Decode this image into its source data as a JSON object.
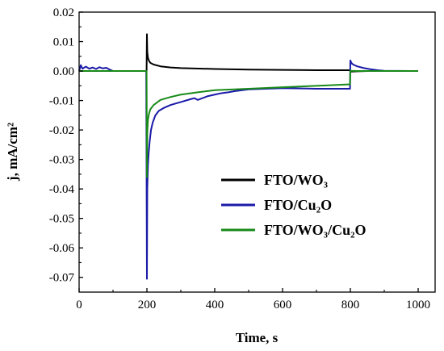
{
  "chart_data": {
    "type": "line",
    "xlabel": "Time, s",
    "ylabel": "j, mA/cm²",
    "xlim": [
      0,
      1050
    ],
    "ylim": [
      -0.075,
      0.02
    ],
    "xticks": [
      0,
      200,
      400,
      600,
      800,
      1000
    ],
    "xtick_labels": [
      "0",
      "200",
      "400",
      "600",
      "800",
      "1000"
    ],
    "yticks": [
      0.02,
      0.01,
      0.0,
      -0.01,
      -0.02,
      -0.03,
      -0.04,
      -0.05,
      -0.06,
      -0.07
    ],
    "ytick_labels": [
      "0.02",
      "0.01",
      "0.00",
      "-0.01",
      "-0.02",
      "-0.03",
      "-0.04",
      "-0.05",
      "-0.06",
      "-0.07"
    ],
    "legend_position": "center-right",
    "series": [
      {
        "name": "FTO/WO₃",
        "color": "#000000",
        "x": [
          0,
          100,
          199,
          200,
          201,
          203,
          206,
          210,
          220,
          240,
          270,
          300,
          400,
          500,
          600,
          700,
          799,
          800,
          801,
          820,
          850,
          900,
          1000
        ],
        "y": [
          0.0,
          0.0,
          0.0,
          0.0125,
          0.0065,
          0.0045,
          0.0035,
          0.0028,
          0.0022,
          0.0016,
          0.0012,
          0.001,
          0.0007,
          0.0005,
          0.0004,
          0.0003,
          0.0003,
          -0.0003,
          -0.0002,
          -0.0001,
          0.0,
          0.0,
          0.0
        ]
      },
      {
        "name": "FTO/Cu₂O",
        "color": "#1a1aa8",
        "x": [
          0,
          5,
          10,
          20,
          30,
          40,
          50,
          60,
          70,
          80,
          90,
          100,
          120,
          150,
          198,
          200,
          201,
          203,
          205,
          208,
          212,
          217,
          225,
          235,
          250,
          270,
          300,
          330,
          340,
          350,
          380,
          400,
          420,
          440,
          460,
          500,
          600,
          700,
          799,
          800,
          802,
          805,
          810,
          820,
          840,
          860,
          880,
          900,
          1000
        ],
        "y": [
          0.0,
          0.002,
          0.0008,
          0.0015,
          0.0008,
          0.0012,
          0.0007,
          0.0013,
          0.0009,
          0.0011,
          0.0005,
          0.0,
          0.0,
          0.0,
          0.0,
          -0.0705,
          -0.04,
          -0.032,
          -0.028,
          -0.024,
          -0.02,
          -0.0175,
          -0.015,
          -0.0135,
          -0.0125,
          -0.0115,
          -0.0105,
          -0.0095,
          -0.0092,
          -0.0098,
          -0.0085,
          -0.008,
          -0.0075,
          -0.0072,
          -0.0068,
          -0.0062,
          -0.0058,
          -0.006,
          -0.006,
          0.0036,
          0.003,
          0.0025,
          0.0021,
          0.0016,
          0.001,
          0.0006,
          0.0003,
          0.0001,
          0.0
        ]
      },
      {
        "name": "FTO/WO₃/Cu₂O",
        "color": "#188a18",
        "x": [
          0,
          100,
          199,
          200,
          201,
          203,
          206,
          210,
          220,
          240,
          270,
          300,
          350,
          400,
          500,
          600,
          700,
          799,
          800,
          801,
          820,
          900,
          1000
        ],
        "y": [
          0.0,
          0.0,
          0.0,
          -0.036,
          -0.021,
          -0.0165,
          -0.0145,
          -0.013,
          -0.0115,
          -0.0098,
          -0.0088,
          -0.008,
          -0.0072,
          -0.0065,
          -0.006,
          -0.0055,
          -0.005,
          -0.0045,
          0.0002,
          0.0001,
          0.0,
          0.0,
          0.0
        ]
      }
    ]
  }
}
